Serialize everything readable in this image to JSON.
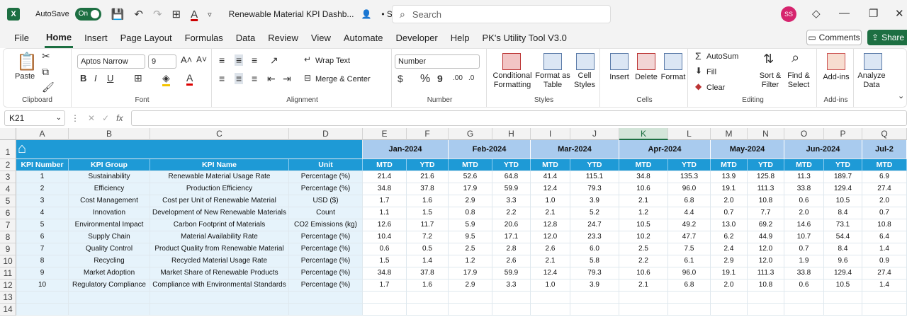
{
  "app": {
    "logo": "X",
    "autosave_label": "AutoSave",
    "autosave_state": "On",
    "file_title": "Renewable Material KPI Dashb...",
    "saved_status": "• Saved",
    "search_placeholder": "Search",
    "user_initials": "SS",
    "icons": [
      "excel-logo",
      "save-icon",
      "undo-icon",
      "redo-icon",
      "borders-icon",
      "font-color-icon",
      "customize-icon",
      "search-icon",
      "gem-icon",
      "minimize-icon",
      "restore-icon",
      "close-icon"
    ]
  },
  "menu": {
    "tabs": [
      "File",
      "Home",
      "Insert",
      "Page Layout",
      "Formulas",
      "Data",
      "Review",
      "View",
      "Automate",
      "Developer",
      "Help",
      "PK's Utility Tool V3.0"
    ],
    "active": "Home",
    "comments_label": "Comments",
    "share_label": "Share"
  },
  "ribbon": {
    "clipboard": {
      "label": "Clipboard",
      "paste": "Paste"
    },
    "font": {
      "label": "Font",
      "font_name": "Aptos Narrow",
      "font_size": "9",
      "bold": "B",
      "italic": "I",
      "underline": "U"
    },
    "alignment": {
      "label": "Alignment",
      "wrap_text": "Wrap Text",
      "merge_center": "Merge & Center"
    },
    "number": {
      "label": "Number",
      "format": "Number",
      "currency": "$",
      "percent": "%",
      "comma": "9"
    },
    "styles": {
      "label": "Styles",
      "conditional": "Conditional",
      "conditional2": "Formatting",
      "format_as": "Format as",
      "format_as2": "Table",
      "cell": "Cell",
      "cell2": "Styles"
    },
    "cells": {
      "label": "Cells",
      "insert": "Insert",
      "delete": "Delete",
      "format": "Format"
    },
    "editing": {
      "label": "Editing",
      "autosum": "AutoSum",
      "fill": "Fill",
      "clear": "Clear",
      "sort": "Sort &",
      "sort2": "Filter",
      "find": "Find &",
      "find2": "Select"
    },
    "addins": {
      "label": "Add-ins",
      "addins": "Add-ins"
    },
    "analyze": {
      "label": "Analyze",
      "label2": "Data"
    }
  },
  "formula_bar": {
    "name_box": "K21",
    "fx": "fx",
    "formula": ""
  },
  "sheet": {
    "columns": [
      "A",
      "B",
      "C",
      "D",
      "E",
      "F",
      "G",
      "H",
      "I",
      "J",
      "K",
      "L",
      "M",
      "N",
      "O",
      "P",
      "Q"
    ],
    "selected_column": "K",
    "rows": [
      "1",
      "2",
      "3",
      "4",
      "5",
      "6",
      "7",
      "8",
      "9",
      "10",
      "11",
      "12",
      "13",
      "14"
    ],
    "months": [
      "Jan-2024",
      "Feb-2024",
      "Mar-2024",
      "Apr-2024",
      "May-2024",
      "Jun-2024",
      "Jul-2"
    ],
    "headers": [
      "KPI Number",
      "KPI Group",
      "KPI Name",
      "Unit",
      "MTD",
      "YTD",
      "MTD",
      "YTD",
      "MTD",
      "YTD",
      "MTD",
      "YTD",
      "MTD",
      "YTD",
      "MTD",
      "YTD",
      "MTD"
    ],
    "data": [
      [
        "1",
        "Sustainability",
        "Renewable Material Usage Rate",
        "Percentage (%)",
        "21.4",
        "21.6",
        "52.6",
        "64.8",
        "41.4",
        "115.1",
        "34.8",
        "135.3",
        "13.9",
        "125.8",
        "11.3",
        "189.7",
        "6.9"
      ],
      [
        "2",
        "Efficiency",
        "Production Efficiency",
        "Percentage (%)",
        "34.8",
        "37.8",
        "17.9",
        "59.9",
        "12.4",
        "79.3",
        "10.6",
        "96.0",
        "19.1",
        "111.3",
        "33.8",
        "129.4",
        "27.4"
      ],
      [
        "3",
        "Cost Management",
        "Cost per Unit of Renewable Material",
        "USD ($)",
        "1.7",
        "1.6",
        "2.9",
        "3.3",
        "1.0",
        "3.9",
        "2.1",
        "6.8",
        "2.0",
        "10.8",
        "0.6",
        "10.5",
        "2.0"
      ],
      [
        "4",
        "Innovation",
        "Development of New Renewable Materials",
        "Count",
        "1.1",
        "1.5",
        "0.8",
        "2.2",
        "2.1",
        "5.2",
        "1.2",
        "4.4",
        "0.7",
        "7.7",
        "2.0",
        "8.4",
        "0.7"
      ],
      [
        "5",
        "Environmental Impact",
        "Carbon Footprint of Materials",
        "CO2 Emissions (kg)",
        "12.6",
        "11.7",
        "5.9",
        "20.6",
        "12.8",
        "24.7",
        "10.5",
        "49.2",
        "13.0",
        "69.2",
        "14.6",
        "73.1",
        "10.8"
      ],
      [
        "6",
        "Supply Chain",
        "Material Availability Rate",
        "Percentage (%)",
        "10.4",
        "7.2",
        "9.5",
        "17.1",
        "12.0",
        "23.3",
        "10.2",
        "47.7",
        "6.2",
        "44.9",
        "10.7",
        "54.4",
        "6.4"
      ],
      [
        "7",
        "Quality Control",
        "Product Quality from Renewable Material",
        "Percentage (%)",
        "0.6",
        "0.5",
        "2.5",
        "2.8",
        "2.6",
        "6.0",
        "2.5",
        "7.5",
        "2.4",
        "12.0",
        "0.7",
        "8.4",
        "1.4"
      ],
      [
        "8",
        "Recycling",
        "Recycled Material Usage Rate",
        "Percentage (%)",
        "1.5",
        "1.4",
        "1.2",
        "2.6",
        "2.1",
        "5.8",
        "2.2",
        "6.1",
        "2.9",
        "12.0",
        "1.9",
        "9.6",
        "0.9"
      ],
      [
        "9",
        "Market Adoption",
        "Market Share of Renewable Products",
        "Percentage (%)",
        "34.8",
        "37.8",
        "17.9",
        "59.9",
        "12.4",
        "79.3",
        "10.6",
        "96.0",
        "19.1",
        "111.3",
        "33.8",
        "129.4",
        "27.4"
      ],
      [
        "10",
        "Regulatory Compliance",
        "Compliance with Environmental Standards",
        "Percentage (%)",
        "1.7",
        "1.6",
        "2.9",
        "3.3",
        "1.0",
        "3.9",
        "2.1",
        "6.8",
        "2.0",
        "10.8",
        "0.6",
        "10.5",
        "1.4"
      ]
    ]
  }
}
